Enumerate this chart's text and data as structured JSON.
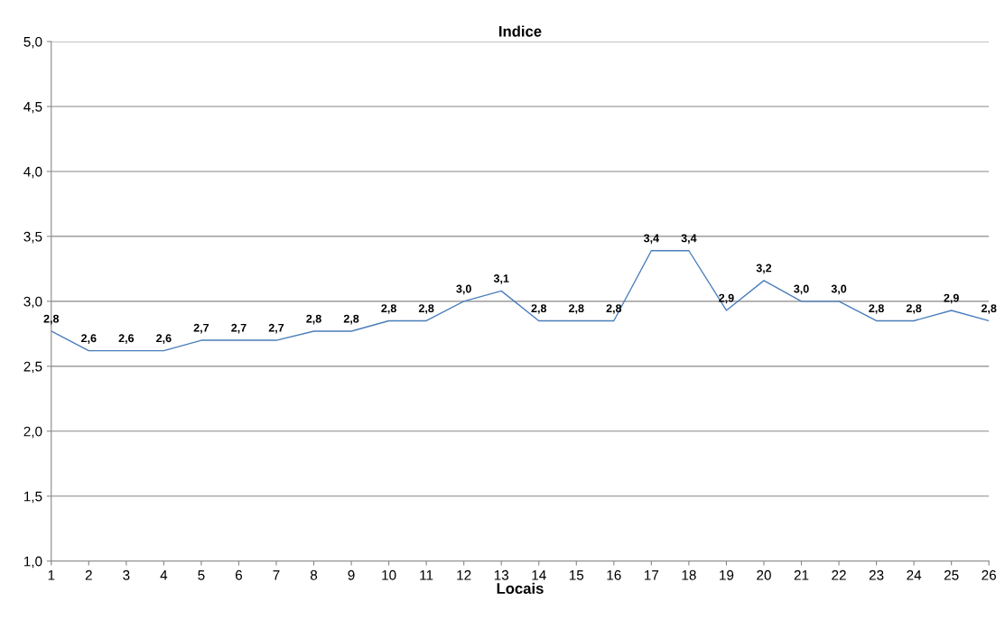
{
  "chart_data": {
    "type": "line",
    "title": "Indice",
    "xlabel": "Locais",
    "categories": [
      "1",
      "2",
      "3",
      "4",
      "5",
      "6",
      "7",
      "8",
      "9",
      "10",
      "11",
      "12",
      "13",
      "14",
      "15",
      "16",
      "17",
      "18",
      "19",
      "20",
      "21",
      "22",
      "23",
      "24",
      "25",
      "26"
    ],
    "series": [
      {
        "color": "#4a7ebb",
        "values": [
          2.77,
          2.62,
          2.62,
          2.62,
          2.7,
          2.7,
          2.7,
          2.77,
          2.77,
          2.85,
          2.85,
          3.0,
          3.08,
          2.85,
          2.85,
          2.85,
          3.39,
          3.39,
          2.93,
          3.16,
          3.0,
          3.0,
          2.85,
          2.85,
          2.93,
          2.85
        ],
        "value_labels": [
          "2,8",
          "2,6",
          "2,6",
          "2,6",
          "2,7",
          "2,7",
          "2,7",
          "2,8",
          "2,8",
          "2,8",
          "2,8",
          "3,0",
          "3,1",
          "2,8",
          "2,8",
          "2,8",
          "3,4",
          "3,4",
          "2,9",
          "3,2",
          "3,0",
          "3,0",
          "2,8",
          "2,8",
          "2,9",
          "2,8"
        ]
      }
    ],
    "ylim": [
      1.0,
      5.0
    ],
    "yticks": [
      {
        "value": 1.0,
        "label": "1,0"
      },
      {
        "value": 1.5,
        "label": "1,5"
      },
      {
        "value": 2.0,
        "label": "2,0"
      },
      {
        "value": 2.5,
        "label": "2,5"
      },
      {
        "value": 3.0,
        "label": "3,0"
      },
      {
        "value": 3.5,
        "label": "3,5"
      },
      {
        "value": 4.0,
        "label": "4,0"
      },
      {
        "value": 4.5,
        "label": "4,5"
      },
      {
        "value": 5.0,
        "label": "5,0"
      }
    ],
    "grid": "y",
    "legend": false,
    "marker": "none",
    "line_style": "solid"
  }
}
